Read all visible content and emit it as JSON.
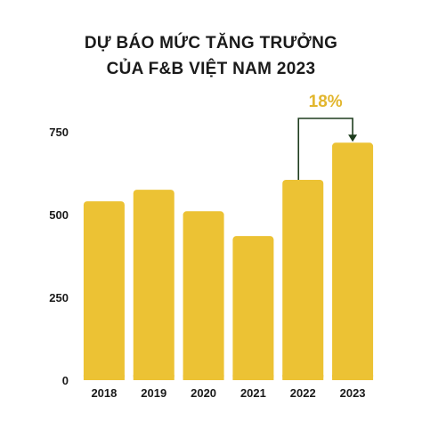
{
  "chart_data": {
    "type": "bar",
    "title_lines": [
      "DỰ BÁO MỨC TĂNG TRƯỞNG",
      "CỦA F&B VIỆT NAM 2023"
    ],
    "categories": [
      "2018",
      "2019",
      "2020",
      "2021",
      "2022",
      "2023"
    ],
    "values": [
      540,
      575,
      510,
      435,
      605,
      717
    ],
    "ylim": [
      0,
      750
    ],
    "yticks": [
      0,
      250,
      500,
      750
    ],
    "xlabel": "",
    "ylabel": "",
    "grid": false,
    "legend": "none",
    "bar_color": "#ecc234",
    "annotation": {
      "text": "18%",
      "from_category": "2022",
      "to_category": "2023",
      "color": "#e2b62e",
      "arrow_color": "#1e3d1e"
    }
  }
}
